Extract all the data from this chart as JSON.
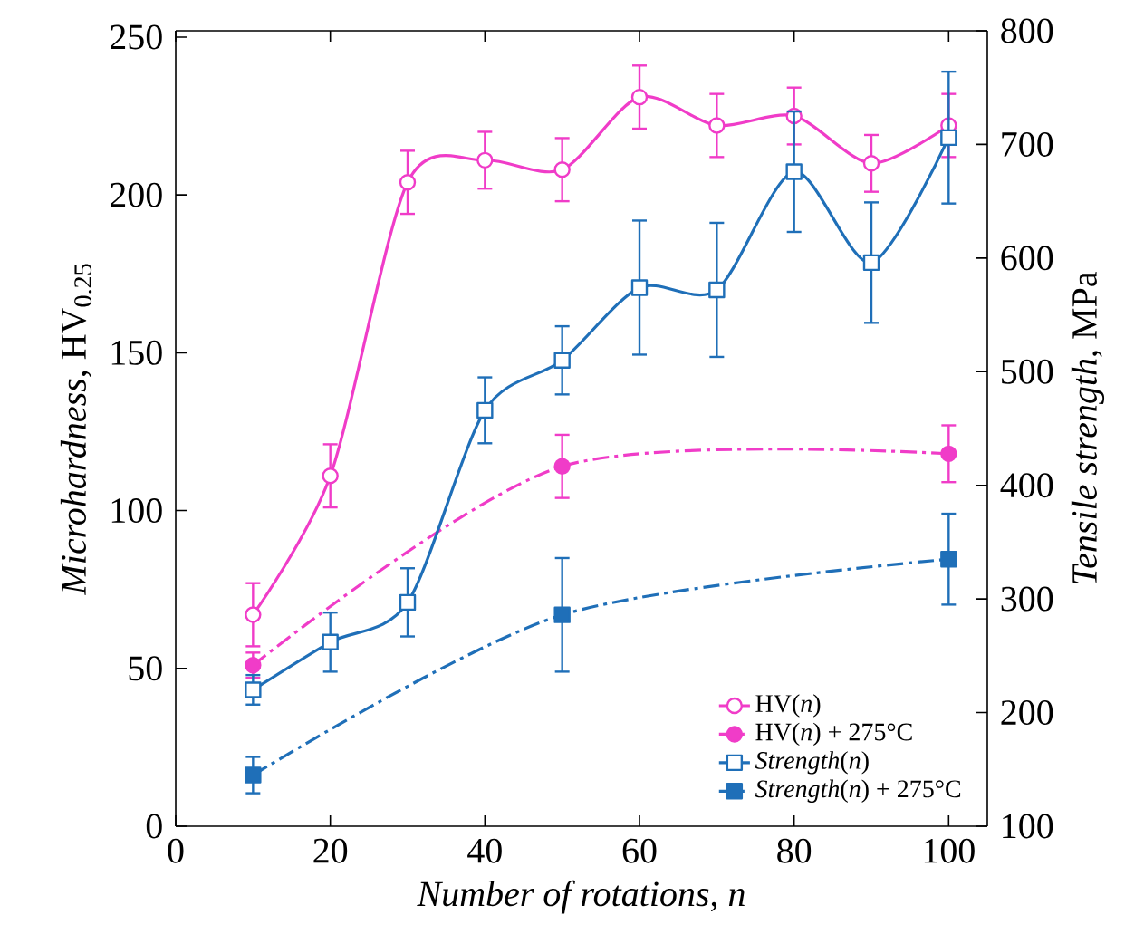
{
  "chart_data": {
    "type": "line",
    "xlabel": "*Number of rotations*, *n*",
    "ylabel": "*Microhardness*, HV$_{0.25}$",
    "y2label": "*Tensile strength*, MPa",
    "xlim": [
      0,
      105
    ],
    "xticks": [
      0,
      20,
      40,
      60,
      80,
      100
    ],
    "ylim": [
      0,
      252
    ],
    "yticks": [
      0,
      50,
      100,
      150,
      200,
      250
    ],
    "y2lim": [
      100,
      800
    ],
    "y2ticks": [
      100,
      200,
      300,
      400,
      500,
      600,
      700,
      800
    ],
    "legend": "bottom right",
    "series": [
      {
        "name": "HV(*n*)",
        "color": "#f03cc8",
        "marker": "circle",
        "line_style": "solid",
        "x": [
          10,
          20,
          30,
          40,
          50,
          60,
          70,
          80,
          90,
          100
        ],
        "values": [
          67,
          111,
          204,
          211,
          208,
          231,
          222,
          225,
          210,
          222
        ],
        "errors": [
          10,
          10,
          10,
          9,
          10,
          10,
          10,
          9,
          9,
          10
        ]
      },
      {
        "name": "HV(*n*) + 275°C",
        "color": "#f03cc8",
        "marker": "circle",
        "line_style": "dashdot",
        "x": [
          10,
          50,
          100
        ],
        "values": [
          51,
          114,
          118
        ],
        "errors": [
          4,
          10,
          9
        ]
      },
      {
        "name": "*Strength*(*n*)",
        "color": "#1f6fb8",
        "marker": "square",
        "line_style": "solid",
        "axis": "y2",
        "x": [
          10,
          20,
          30,
          40,
          50,
          60,
          70,
          80,
          90,
          100
        ],
        "values": [
          220,
          262,
          297,
          466,
          510,
          574,
          572,
          676,
          596,
          706
        ],
        "errors": [
          13,
          26,
          30,
          29,
          30,
          59,
          59,
          53,
          53,
          58
        ]
      },
      {
        "name": "*Strength*(*n*) + 275°C",
        "color": "#1f6fb8",
        "marker": "square",
        "line_style": "dashdot",
        "axis": "y2",
        "x": [
          10,
          50,
          100
        ],
        "values": [
          145,
          286,
          335
        ],
        "errors": [
          16,
          50,
          40
        ]
      }
    ]
  }
}
